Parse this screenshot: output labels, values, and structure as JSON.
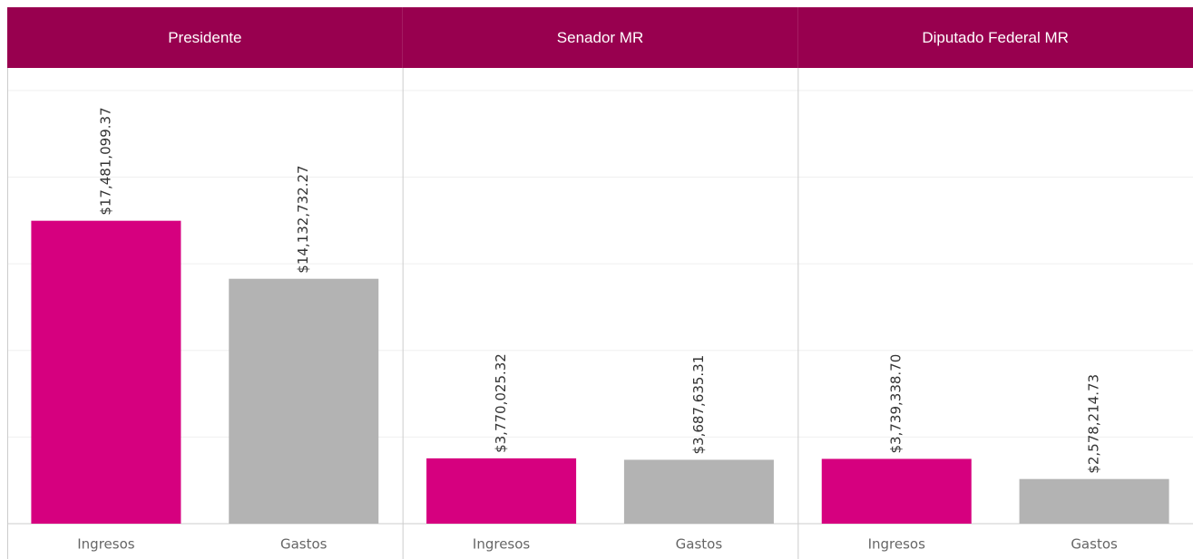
{
  "chart_data": [
    {
      "type": "bar",
      "title": "Presidente",
      "categories": [
        "Ingresos",
        "Gastos"
      ],
      "values": [
        17481099.37,
        14132732.27
      ],
      "value_labels": [
        "$17,481,099.37",
        "$14,132,732.27"
      ],
      "colors": [
        "#d6007f",
        "#b3b3b3"
      ],
      "ylim": [
        0,
        26300000
      ],
      "yticks": [
        0,
        5000000,
        10000000,
        15000000,
        20000000,
        25000000
      ],
      "grid": true
    },
    {
      "type": "bar",
      "title": "Senador MR",
      "categories": [
        "Ingresos",
        "Gastos"
      ],
      "values": [
        3770025.32,
        3687635.31
      ],
      "value_labels": [
        "$3,770,025.32",
        "$3,687,635.31"
      ],
      "colors": [
        "#d6007f",
        "#b3b3b3"
      ],
      "ylim": [
        0,
        26300000
      ],
      "yticks": [
        0,
        5000000,
        10000000,
        15000000,
        20000000,
        25000000
      ],
      "grid": true
    },
    {
      "type": "bar",
      "title": "Diputado Federal MR",
      "categories": [
        "Ingresos",
        "Gastos"
      ],
      "values": [
        3739338.7,
        2578214.73
      ],
      "value_labels": [
        "$3,739,338.70",
        "$2,578,214.73"
      ],
      "colors": [
        "#d6007f",
        "#b3b3b3"
      ],
      "ylim": [
        0,
        26300000
      ],
      "yticks": [
        0,
        5000000,
        10000000,
        15000000,
        20000000,
        25000000
      ],
      "grid": true
    }
  ]
}
